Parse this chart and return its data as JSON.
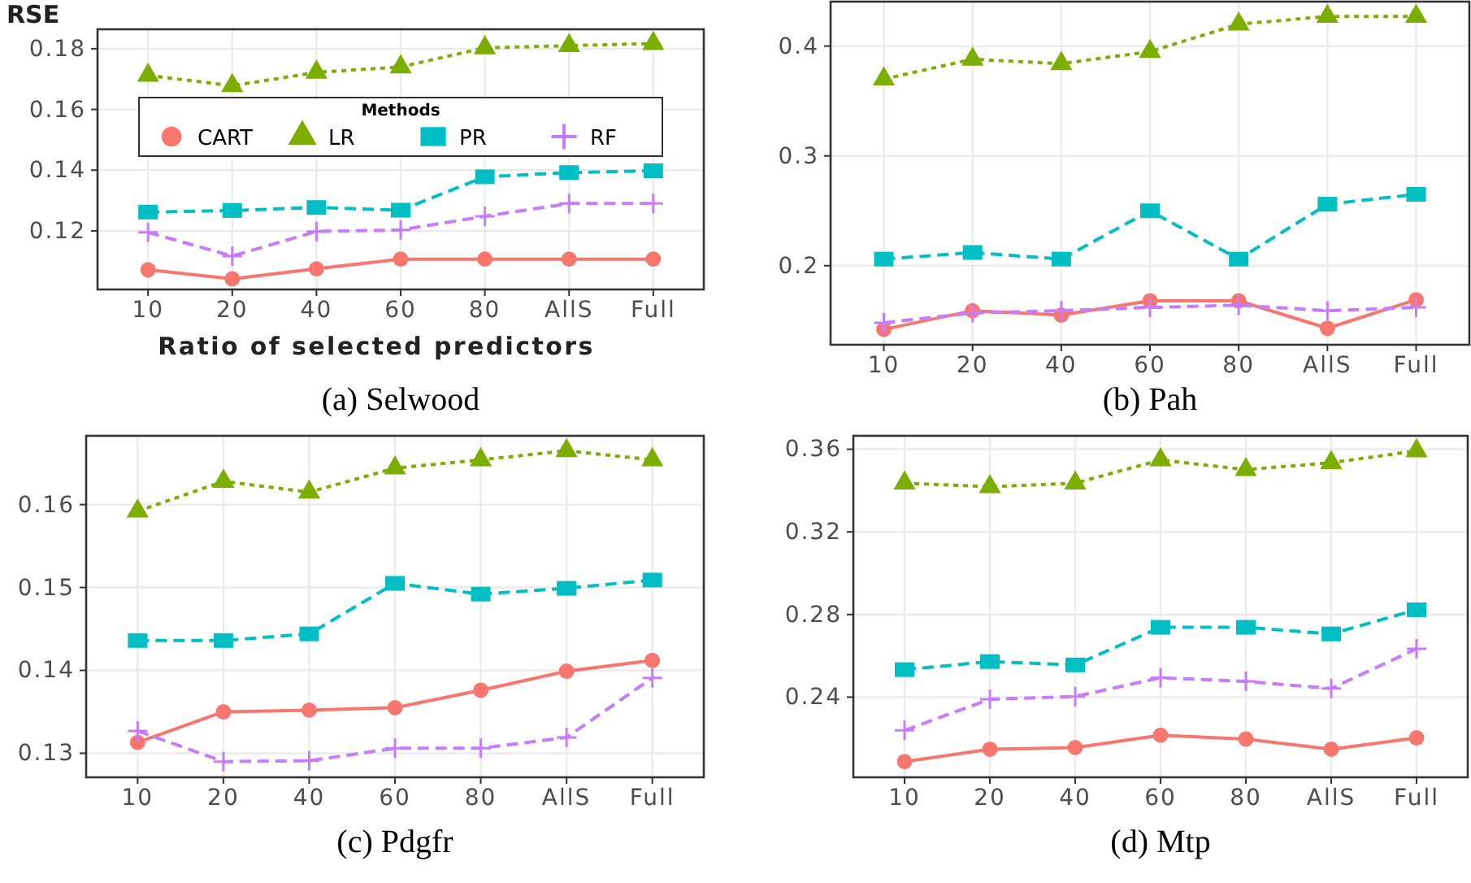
{
  "chart_data": [
    {
      "type": "line",
      "title": "(a) Selwood",
      "xlabel": "Ratio of selected predictors",
      "ylabel": "RSE",
      "legend_title": "Methods",
      "legend": "center",
      "categories": [
        "10",
        "20",
        "40",
        "60",
        "80",
        "AllS",
        "Full"
      ],
      "ylim": [
        0.1007,
        0.1864
      ],
      "yticks": [
        0.12,
        0.14,
        0.16,
        0.18
      ],
      "grid": true,
      "series": [
        {
          "name": "CART",
          "color": "#f8766d",
          "marker": "circle",
          "line_style": "solid",
          "values": [
            0.1072,
            0.1042,
            0.1075,
            0.1107,
            0.1107,
            0.1107,
            0.1107
          ]
        },
        {
          "name": "LR",
          "color": "#7cae00",
          "marker": "triangle",
          "line_style": "dotted",
          "values": [
            0.1712,
            0.1678,
            0.1722,
            0.174,
            0.1803,
            0.181,
            0.1817
          ]
        },
        {
          "name": "PR",
          "color": "#00bfc4",
          "marker": "square",
          "line_style": "dashed",
          "values": [
            0.1262,
            0.1267,
            0.1277,
            0.1268,
            0.1378,
            0.1392,
            0.1398
          ]
        },
        {
          "name": "RF",
          "color": "#c77cff",
          "marker": "cross",
          "line_style": "dashed",
          "values": [
            0.1195,
            0.1117,
            0.1198,
            0.1203,
            0.1248,
            0.129,
            0.129
          ]
        }
      ]
    },
    {
      "type": "line",
      "title": "(b) Pah",
      "categories": [
        "10",
        "20",
        "40",
        "60",
        "80",
        "AllS",
        "Full"
      ],
      "ylim": [
        0.128,
        0.4405
      ],
      "yticks": [
        0.2,
        0.3,
        0.4
      ],
      "grid": true,
      "series": [
        {
          "color": "#f8766d",
          "marker": "circle",
          "line_style": "solid",
          "values": [
            0.142,
            0.159,
            0.155,
            0.168,
            0.168,
            0.143,
            0.169
          ]
        },
        {
          "color": "#7cae00",
          "marker": "triangle",
          "line_style": "dotted",
          "values": [
            0.37,
            0.388,
            0.384,
            0.395,
            0.42,
            0.427,
            0.427
          ]
        },
        {
          "color": "#00bfc4",
          "marker": "square",
          "line_style": "dashed",
          "values": [
            0.206,
            0.212,
            0.206,
            0.25,
            0.206,
            0.256,
            0.265
          ]
        },
        {
          "color": "#c77cff",
          "marker": "cross",
          "line_style": "dashed",
          "values": [
            0.148,
            0.157,
            0.159,
            0.162,
            0.164,
            0.159,
            0.162
          ]
        }
      ]
    },
    {
      "type": "line",
      "title": "(c) Pdgfr",
      "categories": [
        "10",
        "20",
        "40",
        "60",
        "80",
        "AllS",
        "Full"
      ],
      "ylim": [
        0.1271,
        0.1683
      ],
      "yticks": [
        0.13,
        0.14,
        0.15,
        0.16
      ],
      "grid": true,
      "series": [
        {
          "color": "#f8766d",
          "marker": "circle",
          "line_style": "solid",
          "values": [
            0.1313,
            0.135,
            0.1352,
            0.1355,
            0.1376,
            0.1399,
            0.1412
          ]
        },
        {
          "color": "#7cae00",
          "marker": "triangle",
          "line_style": "dotted",
          "values": [
            0.1592,
            0.1628,
            0.1615,
            0.1644,
            0.1654,
            0.1665,
            0.1654
          ]
        },
        {
          "color": "#00bfc4",
          "marker": "square",
          "line_style": "dashed",
          "values": [
            0.1436,
            0.1436,
            0.1444,
            0.1505,
            0.1492,
            0.1499,
            0.1509
          ]
        },
        {
          "color": "#c77cff",
          "marker": "cross",
          "line_style": "dashed",
          "values": [
            0.1327,
            0.129,
            0.1291,
            0.1306,
            0.1306,
            0.1319,
            0.1391
          ]
        }
      ]
    },
    {
      "type": "line",
      "title": "(d) Mtp",
      "categories": [
        "10",
        "20",
        "40",
        "60",
        "80",
        "AllS",
        "Full"
      ],
      "ylim": [
        0.2012,
        0.3665
      ],
      "yticks": [
        0.24,
        0.28,
        0.32,
        0.36
      ],
      "grid": true,
      "series": [
        {
          "color": "#f8766d",
          "marker": "circle",
          "line_style": "solid",
          "values": [
            0.2088,
            0.2148,
            0.2156,
            0.2216,
            0.2197,
            0.2148,
            0.2203
          ]
        },
        {
          "color": "#7cae00",
          "marker": "triangle",
          "line_style": "dotted",
          "values": [
            0.3436,
            0.3418,
            0.3436,
            0.3548,
            0.3501,
            0.3535,
            0.3592
          ]
        },
        {
          "color": "#00bfc4",
          "marker": "square",
          "line_style": "dashed",
          "values": [
            0.2533,
            0.2572,
            0.2556,
            0.2738,
            0.2738,
            0.2706,
            0.2823
          ]
        },
        {
          "color": "#c77cff",
          "marker": "cross",
          "line_style": "dashed",
          "values": [
            0.2239,
            0.239,
            0.2403,
            0.2494,
            0.2476,
            0.2442,
            0.2634
          ]
        }
      ]
    }
  ]
}
